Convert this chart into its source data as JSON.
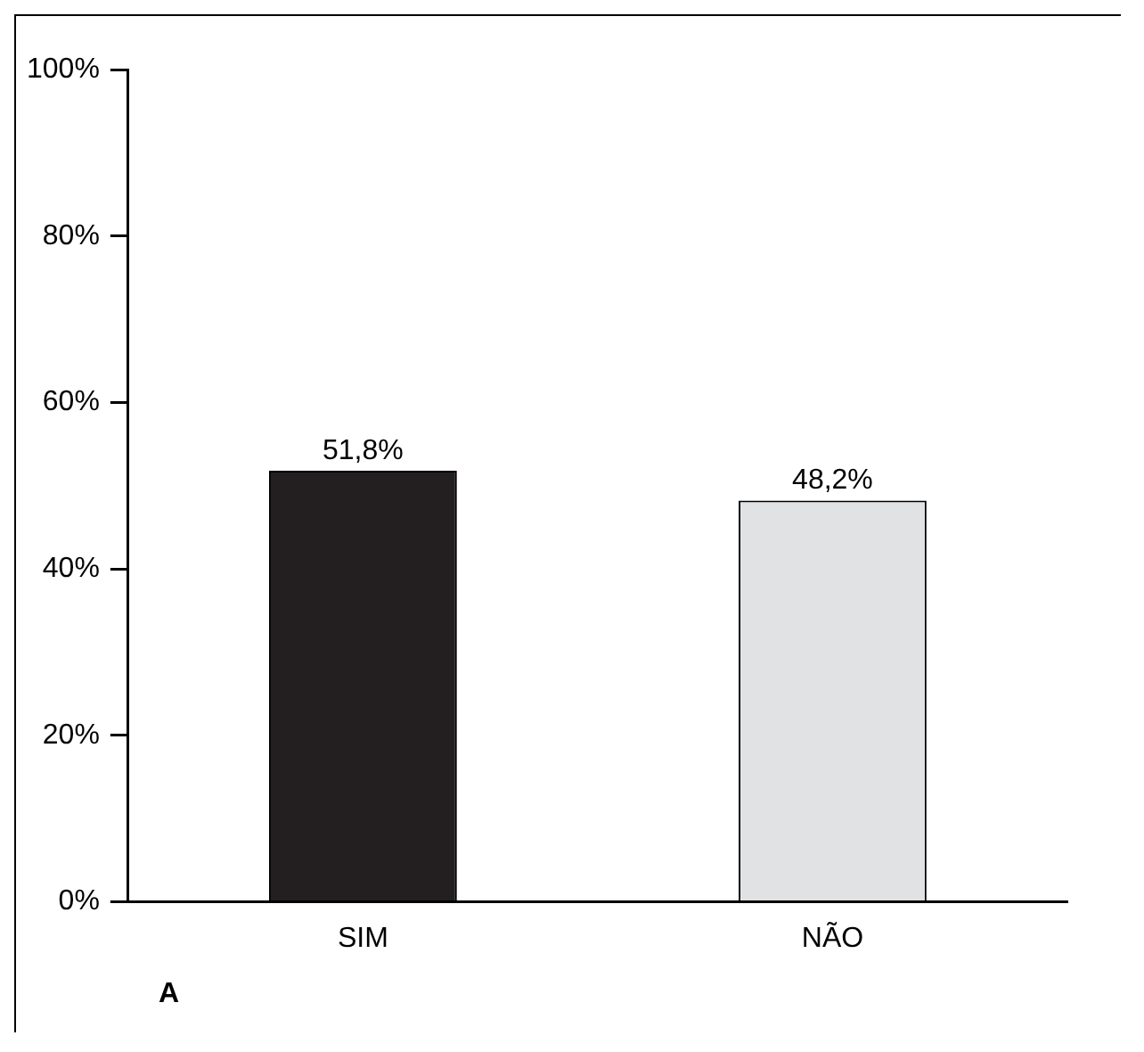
{
  "chart_data": {
    "type": "bar",
    "categories": [
      "SIM",
      "NÃO"
    ],
    "values": [
      51.8,
      48.2
    ],
    "colors": [
      "#231f20",
      "#e1e2e4"
    ],
    "value_labels": [
      "51,8%",
      "48,2%"
    ],
    "ylim": [
      0,
      100
    ],
    "yticks": [
      {
        "value": 0,
        "label": "0%"
      },
      {
        "value": 20,
        "label": "20%"
      },
      {
        "value": 40,
        "label": "40%"
      },
      {
        "value": 60,
        "label": "60%"
      },
      {
        "value": 80,
        "label": "80%"
      },
      {
        "value": 100,
        "label": "100%"
      }
    ],
    "grid": false,
    "legend": false,
    "annotations": [
      "A"
    ]
  }
}
